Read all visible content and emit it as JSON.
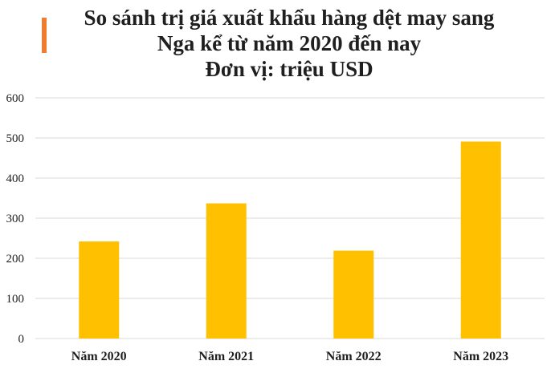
{
  "colors": {
    "bar": "#FFC000",
    "accent": "#ED7D31",
    "grid": "#D9D9D9",
    "text": "#1F1F1F"
  },
  "chart_data": {
    "type": "bar",
    "title_lines": [
      "So sánh trị giá xuất khẩu hàng dệt may sang",
      "Nga kể từ năm 2020 đến nay",
      "Đơn vị: triệu USD"
    ],
    "categories": [
      "Năm 2020",
      "Năm 2021",
      "Năm 2022",
      "Năm 2023"
    ],
    "values": [
      242,
      337,
      219,
      491
    ],
    "ylim": [
      0,
      600
    ],
    "yticks": [
      0,
      100,
      200,
      300,
      400,
      500,
      600
    ],
    "grid": true,
    "legend": "none"
  }
}
